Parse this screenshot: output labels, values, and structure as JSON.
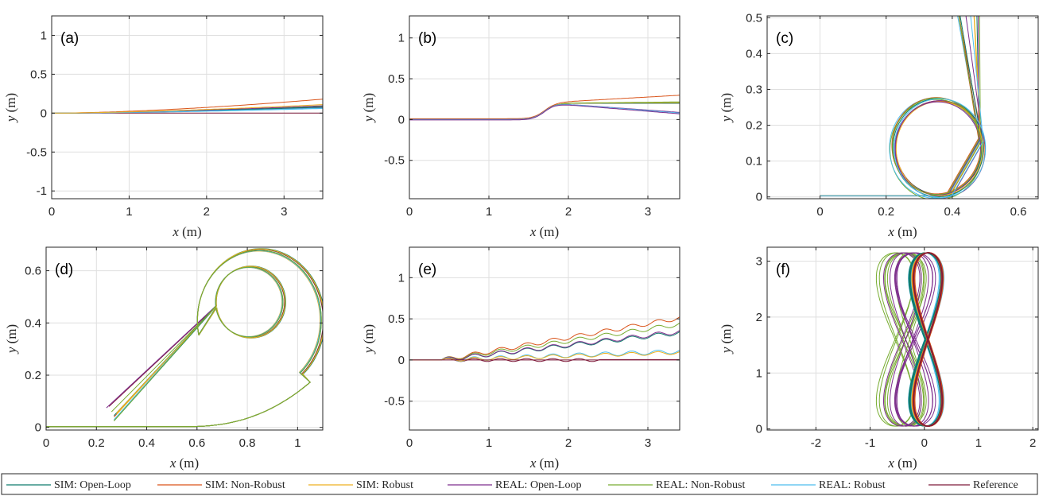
{
  "chart_data": {
    "type": "line",
    "legend": {
      "position": "bottom",
      "entries": [
        {
          "name": "SIM: Open-Loop",
          "color": "#0f7b6c"
        },
        {
          "name": "SIM: Non-Robust",
          "color": "#d95319"
        },
        {
          "name": "SIM: Robust",
          "color": "#edb120"
        },
        {
          "name": "REAL: Open-Loop",
          "color": "#7e2f8e"
        },
        {
          "name": "REAL: Non-Robust",
          "color": "#77ac30"
        },
        {
          "name": "REAL: Robust",
          "color": "#4dbeee"
        },
        {
          "name": "Reference",
          "color": "#7e1a3a"
        }
      ]
    },
    "panels": [
      {
        "label": "(a)",
        "scenario": "straight",
        "xlabel_tex": [
          "x",
          " (m)"
        ],
        "ylabel_tex": [
          "y",
          " (m)"
        ],
        "xlim": [
          0,
          3.5
        ],
        "ylim": [
          -1.1,
          1.25
        ],
        "xticks": [
          0,
          1,
          2,
          3
        ],
        "yticks": [
          -1,
          -0.5,
          0,
          0.5,
          1
        ],
        "xticklabels": [
          "0",
          "1",
          "2",
          "3"
        ],
        "yticklabels": [
          "-1",
          "-0.5",
          "0",
          "0.5",
          "1"
        ],
        "grid": true
      },
      {
        "label": "(b)",
        "scenario": "lane-change",
        "xlabel_tex": [
          "x",
          " (m)"
        ],
        "ylabel_tex": [
          "y",
          " (m)"
        ],
        "xlim": [
          0,
          3.4
        ],
        "ylim": [
          -0.97,
          1.27
        ],
        "xticks": [
          0,
          1,
          2,
          3
        ],
        "yticks": [
          -0.5,
          0,
          0.5,
          1
        ],
        "xticklabels": [
          "0",
          "1",
          "2",
          "3"
        ],
        "yticklabels": [
          "-0.5",
          "0",
          "0.5",
          "1"
        ],
        "grid": true
      },
      {
        "label": "(c)",
        "scenario": "circle",
        "xlabel_tex": [
          "x",
          " (m)"
        ],
        "ylabel_tex": [
          "y",
          " (m)"
        ],
        "xlim": [
          -0.16,
          0.66
        ],
        "ylim": [
          -0.005,
          0.505
        ],
        "xticks": [
          0,
          0.2,
          0.4,
          0.6
        ],
        "yticks": [
          0,
          0.1,
          0.2,
          0.3,
          0.4,
          0.5
        ],
        "xticklabels": [
          "0",
          "0.2",
          "0.4",
          "0.6"
        ],
        "yticklabels": [
          "0",
          "0.1",
          "0.2",
          "0.3",
          "0.4",
          "0.5"
        ],
        "grid": true
      },
      {
        "label": "(d)",
        "scenario": "spiral",
        "xlabel_tex": [
          "x",
          " (m)"
        ],
        "ylabel_tex": [
          "y",
          " (m)"
        ],
        "xlim": [
          0,
          1.1
        ],
        "ylim": [
          -0.01,
          0.69
        ],
        "xticks": [
          0,
          0.2,
          0.4,
          0.6,
          0.8,
          1
        ],
        "yticks": [
          0,
          0.2,
          0.4,
          0.6
        ],
        "xticklabels": [
          "0",
          "0.2",
          "0.4",
          "0.6",
          "0.8",
          "1"
        ],
        "yticklabels": [
          "0",
          "0.2",
          "0.4",
          "0.6"
        ],
        "grid": true
      },
      {
        "label": "(e)",
        "scenario": "wavy",
        "xlabel_tex": [
          "x",
          " (m)"
        ],
        "ylabel_tex": [
          "y",
          " (m)"
        ],
        "xlim": [
          0,
          3.4
        ],
        "ylim": [
          -0.85,
          1.37
        ],
        "xticks": [
          0,
          1,
          2,
          3
        ],
        "yticks": [
          -0.5,
          0,
          0.5,
          1
        ],
        "xticklabels": [
          "0",
          "1",
          "2",
          "3"
        ],
        "yticklabels": [
          "-0.5",
          "0",
          "0.5",
          "1"
        ],
        "grid": true
      },
      {
        "label": "(f)",
        "scenario": "figure-eight",
        "xlabel_tex": [
          "x",
          " (m)"
        ],
        "ylabel_tex": [
          "y",
          " (m)"
        ],
        "xlim": [
          -2.9,
          2.1
        ],
        "ylim": [
          -0.02,
          3.25
        ],
        "xticks": [
          -2,
          -1,
          0,
          1,
          2
        ],
        "yticks": [
          0,
          1,
          2,
          3
        ],
        "xticklabels": [
          "-2",
          "-1",
          "0",
          "1",
          "2"
        ],
        "yticklabels": [
          "0",
          "1",
          "2",
          "3"
        ],
        "grid": true
      }
    ]
  }
}
